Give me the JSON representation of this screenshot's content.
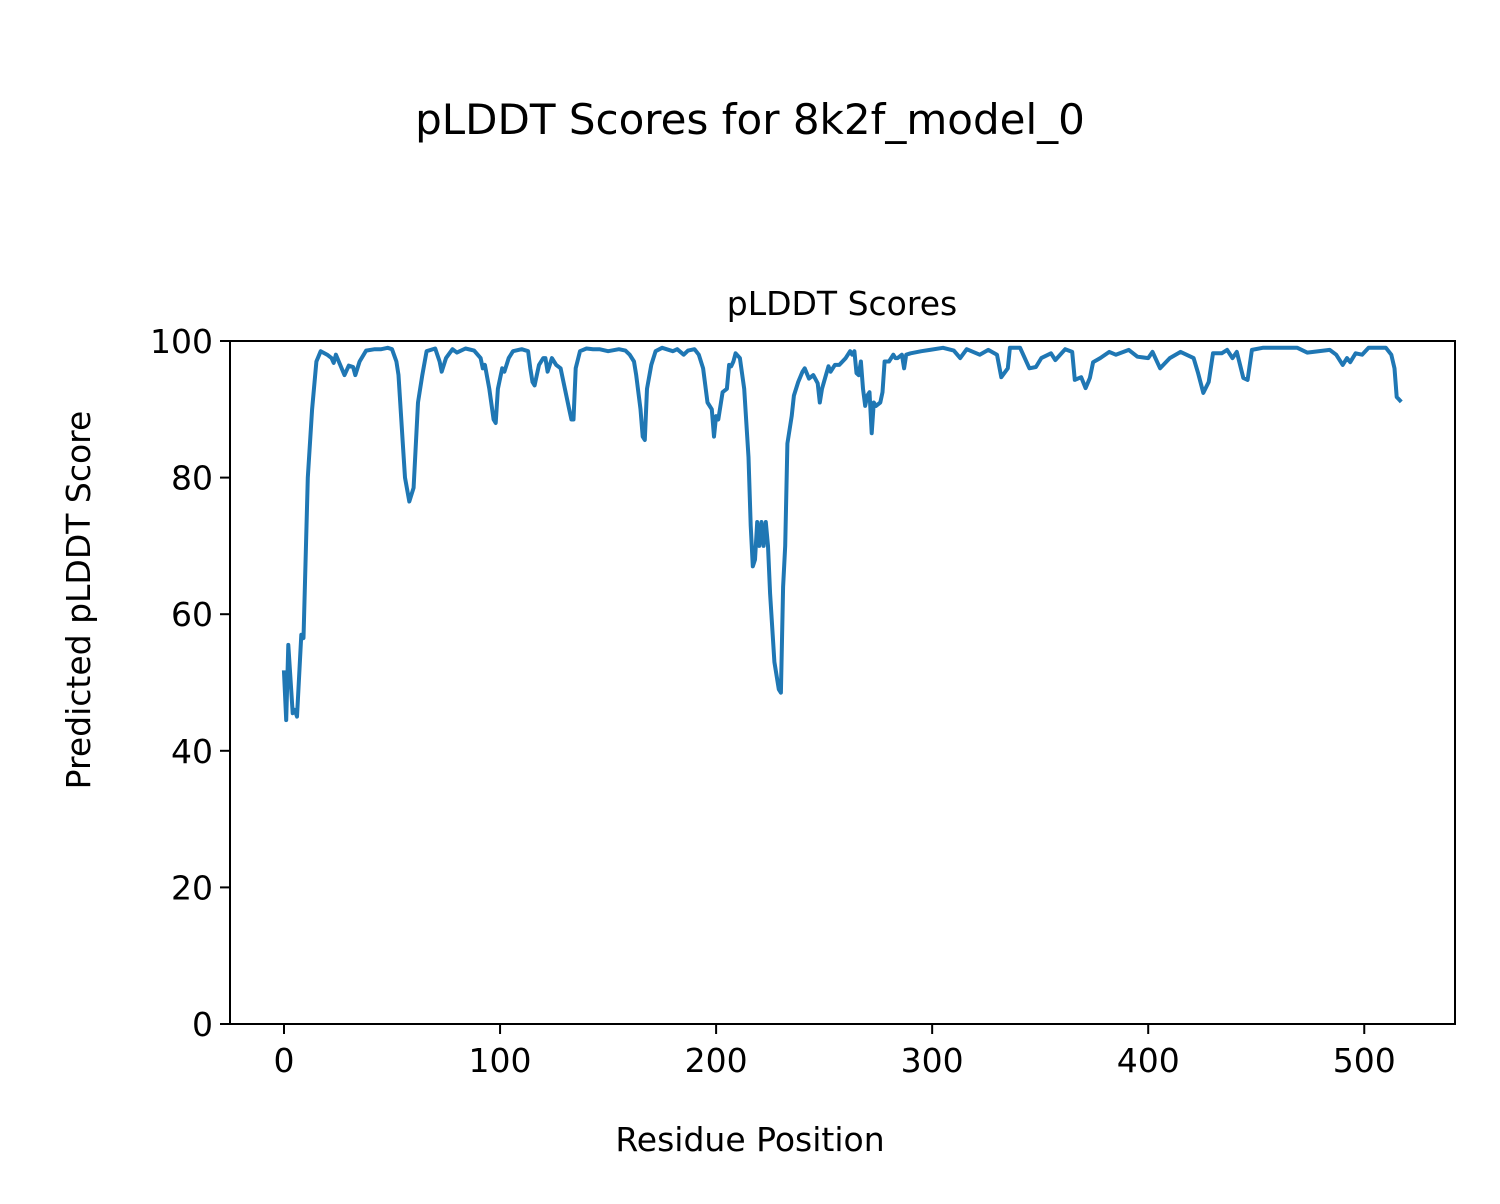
{
  "figure_title": "pLDDT Scores for 8k2f_model_0",
  "chart_data": {
    "type": "line",
    "title": "pLDDT Scores",
    "xlabel": "Residue Position",
    "ylabel": "Predicted pLDDT Score",
    "xlim": [
      -25,
      542
    ],
    "ylim": [
      0,
      100
    ],
    "xticks": [
      0,
      100,
      200,
      300,
      400,
      500
    ],
    "yticks": [
      0,
      20,
      40,
      60,
      80,
      100
    ],
    "grid": false,
    "series": [
      {
        "name": "pLDDT",
        "color": "#1f77b4",
        "points": [
          [
            0,
            51.5
          ],
          [
            1,
            44.5
          ],
          [
            2,
            55.5
          ],
          [
            4,
            45.5
          ],
          [
            5,
            46
          ],
          [
            6,
            45
          ],
          [
            8,
            57
          ],
          [
            9,
            56.5
          ],
          [
            11,
            80
          ],
          [
            13,
            90
          ],
          [
            15,
            97
          ],
          [
            17,
            98.5
          ],
          [
            20,
            98
          ],
          [
            22,
            97.5
          ],
          [
            23,
            96.8
          ],
          [
            24,
            98
          ],
          [
            26,
            96.5
          ],
          [
            28,
            95
          ],
          [
            30,
            96.4
          ],
          [
            32,
            96.2
          ],
          [
            33,
            95
          ],
          [
            35,
            97
          ],
          [
            38,
            98.6
          ],
          [
            42,
            98.8
          ],
          [
            45,
            98.8
          ],
          [
            48,
            99
          ],
          [
            50,
            98.8
          ],
          [
            52,
            97
          ],
          [
            53,
            95
          ],
          [
            55,
            85
          ],
          [
            56,
            80
          ],
          [
            58,
            76.5
          ],
          [
            60,
            78.5
          ],
          [
            62,
            91
          ],
          [
            64,
            95
          ],
          [
            66,
            98.5
          ],
          [
            70,
            98.9
          ],
          [
            72,
            97
          ],
          [
            73,
            95.5
          ],
          [
            75,
            97.5
          ],
          [
            78,
            98.8
          ],
          [
            80,
            98.3
          ],
          [
            84,
            98.9
          ],
          [
            88,
            98.6
          ],
          [
            91,
            97.5
          ],
          [
            92,
            96
          ],
          [
            93,
            96.5
          ],
          [
            95,
            93
          ],
          [
            97,
            88.5
          ],
          [
            98,
            88
          ],
          [
            99,
            93
          ],
          [
            101,
            96
          ],
          [
            102,
            95.5
          ],
          [
            104,
            97.5
          ],
          [
            106,
            98.5
          ],
          [
            110,
            98.8
          ],
          [
            113,
            98.5
          ],
          [
            114,
            96
          ],
          [
            115,
            94
          ],
          [
            116,
            93.5
          ],
          [
            118,
            96.5
          ],
          [
            120,
            97.5
          ],
          [
            121,
            97.5
          ],
          [
            122,
            95.5
          ],
          [
            124,
            97.5
          ],
          [
            126,
            96.5
          ],
          [
            128,
            96
          ],
          [
            130,
            93
          ],
          [
            132,
            90
          ],
          [
            133,
            88.5
          ],
          [
            134,
            88.5
          ],
          [
            135,
            96
          ],
          [
            137,
            98.5
          ],
          [
            140,
            98.9
          ],
          [
            143,
            98.8
          ],
          [
            146,
            98.8
          ],
          [
            150,
            98.5
          ],
          [
            155,
            98.8
          ],
          [
            158,
            98.6
          ],
          [
            160,
            98
          ],
          [
            162,
            97
          ],
          [
            163,
            95
          ],
          [
            165,
            90
          ],
          [
            166,
            86
          ],
          [
            167,
            85.5
          ],
          [
            168,
            93
          ],
          [
            170,
            96.5
          ],
          [
            172,
            98.5
          ],
          [
            175,
            99
          ],
          [
            180,
            98.5
          ],
          [
            182,
            98.8
          ],
          [
            185,
            98
          ],
          [
            187,
            98.6
          ],
          [
            190,
            98.8
          ],
          [
            192,
            98
          ],
          [
            194,
            96
          ],
          [
            196,
            91
          ],
          [
            198,
            90
          ],
          [
            199,
            86
          ],
          [
            200,
            89
          ],
          [
            201,
            88.5
          ],
          [
            203,
            92.5
          ],
          [
            205,
            93
          ],
          [
            206,
            96.5
          ],
          [
            207,
            96.3
          ],
          [
            208,
            97
          ],
          [
            209,
            98.2
          ],
          [
            211,
            97.5
          ],
          [
            213,
            93
          ],
          [
            215,
            83
          ],
          [
            216,
            73
          ],
          [
            217,
            67
          ],
          [
            218,
            68
          ],
          [
            219,
            73.5
          ],
          [
            220,
            70
          ],
          [
            221,
            73.5
          ],
          [
            222,
            70
          ],
          [
            223,
            73.5
          ],
          [
            224,
            70
          ],
          [
            225,
            63
          ],
          [
            227,
            53
          ],
          [
            229,
            49
          ],
          [
            230,
            48.5
          ],
          [
            231,
            64
          ],
          [
            232,
            70
          ],
          [
            233,
            85
          ],
          [
            235,
            89
          ],
          [
            236,
            92
          ],
          [
            238,
            94
          ],
          [
            240,
            95.5
          ],
          [
            241,
            96
          ],
          [
            243,
            94.5
          ],
          [
            245,
            95
          ],
          [
            247,
            93.8
          ],
          [
            248,
            91
          ],
          [
            249,
            93
          ],
          [
            251,
            95.2
          ],
          [
            252,
            96.3
          ],
          [
            253,
            95.5
          ],
          [
            255,
            96.5
          ],
          [
            257,
            96.5
          ],
          [
            260,
            97.5
          ],
          [
            262,
            98.5
          ],
          [
            263,
            98
          ],
          [
            264,
            98.5
          ],
          [
            265,
            95.3
          ],
          [
            266,
            95
          ],
          [
            267,
            97
          ],
          [
            268,
            93
          ],
          [
            269,
            90.5
          ],
          [
            270,
            92
          ],
          [
            271,
            92.5
          ],
          [
            272,
            86.5
          ],
          [
            273,
            91
          ],
          [
            274,
            90.5
          ],
          [
            276,
            91
          ],
          [
            277,
            92.5
          ],
          [
            278,
            97
          ],
          [
            280,
            97
          ],
          [
            282,
            98
          ],
          [
            283,
            97.5
          ],
          [
            284,
            97.5
          ],
          [
            286,
            98
          ],
          [
            287,
            96
          ],
          [
            288,
            98
          ],
          [
            290,
            98.2
          ],
          [
            295,
            98.5
          ],
          [
            299,
            98.7
          ],
          [
            305,
            99
          ],
          [
            310,
            98.6
          ],
          [
            313,
            97.5
          ],
          [
            316,
            98.8
          ],
          [
            322,
            98
          ],
          [
            326,
            98.7
          ],
          [
            330,
            98
          ],
          [
            332,
            94.7
          ],
          [
            335,
            96
          ],
          [
            336,
            99
          ],
          [
            340.7,
            99
          ],
          [
            345,
            96
          ],
          [
            348,
            96.2
          ],
          [
            350.5,
            97.5
          ],
          [
            355,
            98.2
          ],
          [
            357,
            97.2
          ],
          [
            361.6,
            98.8
          ],
          [
            364.8,
            98.4
          ],
          [
            366,
            94.3
          ],
          [
            369,
            94.7
          ],
          [
            371,
            93.1
          ],
          [
            373,
            94.6
          ],
          [
            374.5,
            96.9
          ],
          [
            377.8,
            97.5
          ],
          [
            382,
            98.4
          ],
          [
            385,
            98
          ],
          [
            391,
            98.7
          ],
          [
            395,
            97.7
          ],
          [
            400,
            97.5
          ],
          [
            402,
            98.4
          ],
          [
            405.5,
            96
          ],
          [
            410,
            97.5
          ],
          [
            415,
            98.4
          ],
          [
            421,
            97.5
          ],
          [
            423,
            95.4
          ],
          [
            425.5,
            92.4
          ],
          [
            428,
            94
          ],
          [
            430,
            98.2
          ],
          [
            434,
            98.2
          ],
          [
            436.5,
            98.7
          ],
          [
            439,
            97.5
          ],
          [
            441,
            98.4
          ],
          [
            444,
            94.6
          ],
          [
            446,
            94.3
          ],
          [
            448,
            98.7
          ],
          [
            453,
            99
          ],
          [
            469,
            99
          ],
          [
            473.6,
            98.3
          ],
          [
            484,
            98.7
          ],
          [
            487,
            98
          ],
          [
            490,
            96.5
          ],
          [
            492,
            97.5
          ],
          [
            493.5,
            96.9
          ],
          [
            496,
            98.2
          ],
          [
            499,
            98
          ],
          [
            502,
            99
          ],
          [
            510,
            99
          ],
          [
            512.5,
            98
          ],
          [
            514,
            96
          ],
          [
            515,
            91.8
          ],
          [
            516.5,
            91.3
          ]
        ]
      }
    ]
  }
}
